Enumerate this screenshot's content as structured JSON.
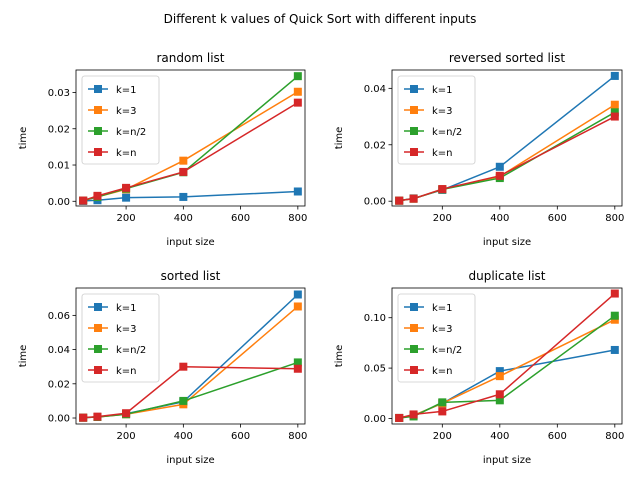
{
  "suptitle": "Different k values of Quick Sort with different inputs",
  "chart_data": [
    {
      "type": "line",
      "title": "random list",
      "xlabel": "input size",
      "ylabel": "time",
      "x": [
        50,
        100,
        200,
        400,
        800
      ],
      "xlim": [
        25,
        825
      ],
      "ylim": [
        -0.0013,
        0.0362
      ],
      "xticks": [
        200,
        400,
        600,
        800
      ],
      "yticks": [
        0.0,
        0.01,
        0.02,
        0.03
      ],
      "ytick_labels": [
        "0.00",
        "0.01",
        "0.02",
        "0.03"
      ],
      "grid": false,
      "legend_position": "upper-left",
      "series": [
        {
          "name": "k=1",
          "values": [
            0.0001,
            0.0003,
            0.001,
            0.0012,
            0.0027
          ]
        },
        {
          "name": "k=3",
          "values": [
            0.0002,
            0.0012,
            0.0033,
            0.0112,
            0.0302
          ]
        },
        {
          "name": "k=n/2",
          "values": [
            0.0002,
            0.0012,
            0.0035,
            0.008,
            0.0345
          ]
        },
        {
          "name": "k=n",
          "values": [
            0.0002,
            0.0015,
            0.0037,
            0.0081,
            0.0272
          ]
        }
      ]
    },
    {
      "type": "line",
      "title": "reversed sorted list",
      "xlabel": "input size",
      "ylabel": "time",
      "x": [
        50,
        100,
        200,
        400,
        800
      ],
      "xlim": [
        25,
        825
      ],
      "ylim": [
        -0.0017,
        0.0465
      ],
      "xticks": [
        200,
        400,
        600,
        800
      ],
      "yticks": [
        0.0,
        0.02,
        0.04
      ],
      "ytick_labels": [
        "0.00",
        "0.02",
        "0.04"
      ],
      "grid": false,
      "legend_position": "upper-left",
      "series": [
        {
          "name": "k=1",
          "values": [
            0.0002,
            0.001,
            0.004,
            0.0122,
            0.0444
          ]
        },
        {
          "name": "k=3",
          "values": [
            0.0002,
            0.0009,
            0.0042,
            0.0088,
            0.0342
          ]
        },
        {
          "name": "k=n/2",
          "values": [
            0.0002,
            0.0009,
            0.0042,
            0.0082,
            0.0315
          ]
        },
        {
          "name": "k=n",
          "values": [
            0.0002,
            0.0009,
            0.0043,
            0.009,
            0.03
          ]
        }
      ]
    },
    {
      "type": "line",
      "title": "sorted list",
      "xlabel": "input size",
      "ylabel": "time",
      "x": [
        50,
        100,
        200,
        400,
        800
      ],
      "xlim": [
        25,
        825
      ],
      "ylim": [
        -0.0035,
        0.076
      ],
      "xticks": [
        200,
        400,
        600,
        800
      ],
      "yticks": [
        0.0,
        0.02,
        0.04,
        0.06
      ],
      "ytick_labels": [
        "0.00",
        "0.02",
        "0.04",
        "0.06"
      ],
      "grid": false,
      "legend_position": "upper-left",
      "series": [
        {
          "name": "k=1",
          "values": [
            0.0002,
            0.0006,
            0.0025,
            0.0095,
            0.0722
          ]
        },
        {
          "name": "k=3",
          "values": [
            0.0002,
            0.0006,
            0.0022,
            0.008,
            0.0652
          ]
        },
        {
          "name": "k=n/2",
          "values": [
            0.0002,
            0.0006,
            0.0022,
            0.01,
            0.0325
          ]
        },
        {
          "name": "k=n",
          "values": [
            0.0002,
            0.0008,
            0.0028,
            0.03,
            0.0288
          ]
        }
      ]
    },
    {
      "type": "line",
      "title": "duplicate list",
      "xlabel": "input size",
      "ylabel": "time",
      "x": [
        50,
        100,
        200,
        400,
        800
      ],
      "xlim": [
        25,
        825
      ],
      "ylim": [
        -0.0055,
        0.1295
      ],
      "xticks": [
        200,
        400,
        600,
        800
      ],
      "yticks": [
        0.0,
        0.05,
        0.1
      ],
      "ytick_labels": [
        "0.00",
        "0.05",
        "0.10"
      ],
      "grid": false,
      "legend_position": "upper-left",
      "series": [
        {
          "name": "k=1",
          "values": [
            0.0005,
            0.003,
            0.015,
            0.047,
            0.068
          ]
        },
        {
          "name": "k=3",
          "values": [
            0.0005,
            0.003,
            0.015,
            0.042,
            0.098
          ]
        },
        {
          "name": "k=n/2",
          "values": [
            0.0005,
            0.002,
            0.016,
            0.018,
            0.102
          ]
        },
        {
          "name": "k=n",
          "values": [
            0.0005,
            0.004,
            0.007,
            0.024,
            0.124
          ]
        }
      ]
    }
  ],
  "colors": [
    "#1f77b4",
    "#ff7f0e",
    "#2ca02c",
    "#d62728"
  ]
}
